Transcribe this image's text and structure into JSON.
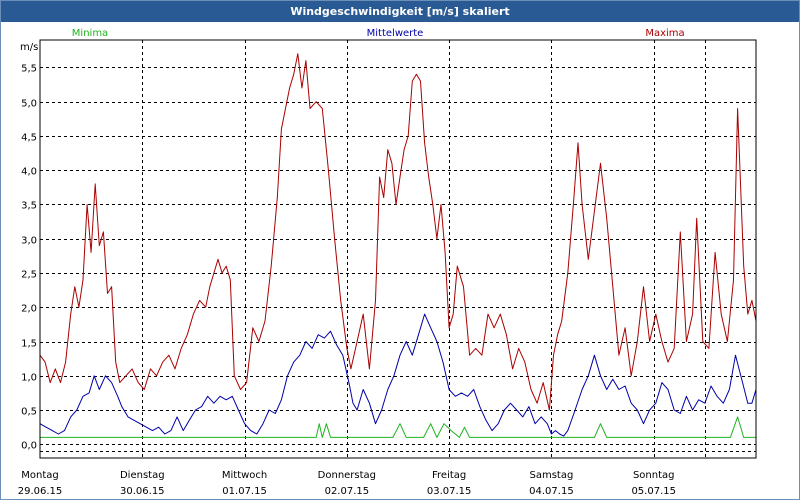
{
  "chart_data": {
    "type": "line",
    "title": "Windgeschwindigkeit [m/s] skaliert",
    "ylabel": "m/s",
    "ylim": [
      -0.2,
      5.9
    ],
    "y_ticks": [
      {
        "v": 0.0,
        "label": "0,0"
      },
      {
        "v": 0.5,
        "label": "0,5"
      },
      {
        "v": 1.0,
        "label": "1,0"
      },
      {
        "v": 1.5,
        "label": "1,5"
      },
      {
        "v": 2.0,
        "label": "2,0"
      },
      {
        "v": 2.5,
        "label": "2,5"
      },
      {
        "v": 3.0,
        "label": "3,0"
      },
      {
        "v": 3.5,
        "label": "3,5"
      },
      {
        "v": 4.0,
        "label": "4,0"
      },
      {
        "v": 4.5,
        "label": "4,5"
      },
      {
        "v": 5.0,
        "label": "5,0"
      },
      {
        "v": 5.5,
        "label": "5,5"
      }
    ],
    "xlim": [
      0,
      7
    ],
    "x_ticks": [
      {
        "day": 0,
        "weekday": "Montag",
        "date": "29.06.15"
      },
      {
        "day": 1,
        "weekday": "Dienstag",
        "date": "30.06.15"
      },
      {
        "day": 2,
        "weekday": "Mittwoch",
        "date": "01.07.15"
      },
      {
        "day": 3,
        "weekday": "Donnerstag",
        "date": "02.07.15"
      },
      {
        "day": 4,
        "weekday": "Freitag",
        "date": "03.07.15"
      },
      {
        "day": 5,
        "weekday": "Samstag",
        "date": "04.07.15"
      },
      {
        "day": 6,
        "weekday": "Sonntag",
        "date": "05.07.15"
      }
    ],
    "grid": true,
    "legend_position": "top",
    "series": [
      {
        "name": "Minima",
        "color": "#1db41d",
        "points": [
          [
            0,
            0.1
          ],
          [
            2.7,
            0.1
          ],
          [
            2.73,
            0.3
          ],
          [
            2.76,
            0.1
          ],
          [
            2.8,
            0.3
          ],
          [
            2.84,
            0.1
          ],
          [
            3.45,
            0.1
          ],
          [
            3.52,
            0.3
          ],
          [
            3.58,
            0.1
          ],
          [
            3.75,
            0.1
          ],
          [
            3.82,
            0.3
          ],
          [
            3.88,
            0.1
          ],
          [
            3.95,
            0.3
          ],
          [
            4.02,
            0.2
          ],
          [
            4.1,
            0.1
          ],
          [
            4.15,
            0.25
          ],
          [
            4.2,
            0.1
          ],
          [
            5.42,
            0.1
          ],
          [
            5.48,
            0.3
          ],
          [
            5.54,
            0.1
          ],
          [
            6.75,
            0.1
          ],
          [
            6.82,
            0.4
          ],
          [
            6.88,
            0.1
          ],
          [
            7,
            0.1
          ]
        ]
      },
      {
        "name": "Mittelwerte",
        "color": "#0000aa",
        "points": [
          [
            0,
            0.3
          ],
          [
            0.06,
            0.25
          ],
          [
            0.12,
            0.2
          ],
          [
            0.18,
            0.15
          ],
          [
            0.24,
            0.2
          ],
          [
            0.3,
            0.4
          ],
          [
            0.36,
            0.5
          ],
          [
            0.42,
            0.7
          ],
          [
            0.48,
            0.75
          ],
          [
            0.53,
            1.0
          ],
          [
            0.58,
            0.8
          ],
          [
            0.64,
            1.0
          ],
          [
            0.7,
            0.9
          ],
          [
            0.76,
            0.7
          ],
          [
            0.8,
            0.55
          ],
          [
            0.86,
            0.4
          ],
          [
            0.92,
            0.35
          ],
          [
            0.98,
            0.3
          ],
          [
            1.04,
            0.25
          ],
          [
            1.1,
            0.2
          ],
          [
            1.16,
            0.25
          ],
          [
            1.22,
            0.15
          ],
          [
            1.28,
            0.2
          ],
          [
            1.34,
            0.4
          ],
          [
            1.4,
            0.2
          ],
          [
            1.46,
            0.35
          ],
          [
            1.52,
            0.5
          ],
          [
            1.58,
            0.55
          ],
          [
            1.64,
            0.7
          ],
          [
            1.7,
            0.6
          ],
          [
            1.76,
            0.7
          ],
          [
            1.82,
            0.65
          ],
          [
            1.88,
            0.7
          ],
          [
            1.94,
            0.5
          ],
          [
            2.0,
            0.3
          ],
          [
            2.06,
            0.2
          ],
          [
            2.12,
            0.15
          ],
          [
            2.18,
            0.3
          ],
          [
            2.24,
            0.5
          ],
          [
            2.3,
            0.45
          ],
          [
            2.36,
            0.65
          ],
          [
            2.42,
            1.0
          ],
          [
            2.48,
            1.2
          ],
          [
            2.54,
            1.3
          ],
          [
            2.6,
            1.5
          ],
          [
            2.66,
            1.4
          ],
          [
            2.72,
            1.6
          ],
          [
            2.78,
            1.55
          ],
          [
            2.84,
            1.65
          ],
          [
            2.9,
            1.45
          ],
          [
            2.96,
            1.3
          ],
          [
            3.02,
            0.9
          ],
          [
            3.06,
            0.6
          ],
          [
            3.1,
            0.5
          ],
          [
            3.16,
            0.8
          ],
          [
            3.22,
            0.6
          ],
          [
            3.28,
            0.3
          ],
          [
            3.34,
            0.5
          ],
          [
            3.4,
            0.8
          ],
          [
            3.46,
            1.0
          ],
          [
            3.52,
            1.3
          ],
          [
            3.58,
            1.5
          ],
          [
            3.64,
            1.3
          ],
          [
            3.7,
            1.6
          ],
          [
            3.76,
            1.9
          ],
          [
            3.82,
            1.7
          ],
          [
            3.88,
            1.5
          ],
          [
            3.94,
            1.2
          ],
          [
            4.0,
            0.8
          ],
          [
            4.06,
            0.7
          ],
          [
            4.12,
            0.75
          ],
          [
            4.18,
            0.7
          ],
          [
            4.24,
            0.8
          ],
          [
            4.3,
            0.55
          ],
          [
            4.36,
            0.35
          ],
          [
            4.42,
            0.2
          ],
          [
            4.48,
            0.3
          ],
          [
            4.54,
            0.5
          ],
          [
            4.6,
            0.6
          ],
          [
            4.66,
            0.5
          ],
          [
            4.72,
            0.4
          ],
          [
            4.78,
            0.55
          ],
          [
            4.84,
            0.3
          ],
          [
            4.9,
            0.4
          ],
          [
            4.96,
            0.3
          ],
          [
            5.0,
            0.15
          ],
          [
            5.04,
            0.2
          ],
          [
            5.08,
            0.15
          ],
          [
            5.12,
            0.12
          ],
          [
            5.16,
            0.2
          ],
          [
            5.22,
            0.45
          ],
          [
            5.3,
            0.8
          ],
          [
            5.36,
            1.0
          ],
          [
            5.42,
            1.3
          ],
          [
            5.48,
            1.0
          ],
          [
            5.54,
            0.8
          ],
          [
            5.6,
            0.95
          ],
          [
            5.66,
            0.8
          ],
          [
            5.72,
            0.85
          ],
          [
            5.78,
            0.6
          ],
          [
            5.84,
            0.5
          ],
          [
            5.9,
            0.3
          ],
          [
            5.96,
            0.5
          ],
          [
            6.02,
            0.6
          ],
          [
            6.08,
            0.9
          ],
          [
            6.14,
            0.8
          ],
          [
            6.2,
            0.5
          ],
          [
            6.26,
            0.45
          ],
          [
            6.32,
            0.7
          ],
          [
            6.38,
            0.5
          ],
          [
            6.44,
            0.65
          ],
          [
            6.5,
            0.6
          ],
          [
            6.56,
            0.85
          ],
          [
            6.62,
            0.7
          ],
          [
            6.68,
            0.6
          ],
          [
            6.74,
            0.8
          ],
          [
            6.8,
            1.3
          ],
          [
            6.86,
            0.95
          ],
          [
            6.92,
            0.6
          ],
          [
            6.96,
            0.6
          ],
          [
            7.0,
            0.8
          ]
        ]
      },
      {
        "name": "Maxima",
        "color": "#aa0000",
        "points": [
          [
            0,
            1.3
          ],
          [
            0.05,
            1.2
          ],
          [
            0.1,
            0.9
          ],
          [
            0.15,
            1.1
          ],
          [
            0.2,
            0.9
          ],
          [
            0.25,
            1.2
          ],
          [
            0.3,
            1.9
          ],
          [
            0.34,
            2.3
          ],
          [
            0.38,
            2.0
          ],
          [
            0.42,
            2.4
          ],
          [
            0.46,
            3.5
          ],
          [
            0.5,
            2.8
          ],
          [
            0.54,
            3.8
          ],
          [
            0.58,
            2.9
          ],
          [
            0.62,
            3.1
          ],
          [
            0.66,
            2.2
          ],
          [
            0.7,
            2.3
          ],
          [
            0.74,
            1.2
          ],
          [
            0.78,
            0.9
          ],
          [
            0.84,
            1.0
          ],
          [
            0.9,
            1.1
          ],
          [
            0.96,
            0.9
          ],
          [
            1.02,
            0.8
          ],
          [
            1.08,
            1.1
          ],
          [
            1.14,
            1.0
          ],
          [
            1.2,
            1.2
          ],
          [
            1.26,
            1.3
          ],
          [
            1.32,
            1.1
          ],
          [
            1.38,
            1.4
          ],
          [
            1.44,
            1.6
          ],
          [
            1.5,
            1.9
          ],
          [
            1.56,
            2.1
          ],
          [
            1.62,
            2.0
          ],
          [
            1.66,
            2.3
          ],
          [
            1.7,
            2.5
          ],
          [
            1.74,
            2.7
          ],
          [
            1.78,
            2.5
          ],
          [
            1.82,
            2.6
          ],
          [
            1.86,
            2.4
          ],
          [
            1.9,
            1.0
          ],
          [
            1.96,
            0.8
          ],
          [
            2.02,
            0.9
          ],
          [
            2.08,
            1.7
          ],
          [
            2.14,
            1.5
          ],
          [
            2.2,
            1.8
          ],
          [
            2.26,
            2.6
          ],
          [
            2.32,
            3.6
          ],
          [
            2.36,
            4.6
          ],
          [
            2.4,
            4.9
          ],
          [
            2.44,
            5.2
          ],
          [
            2.48,
            5.4
          ],
          [
            2.52,
            5.7
          ],
          [
            2.56,
            5.2
          ],
          [
            2.6,
            5.6
          ],
          [
            2.64,
            4.9
          ],
          [
            2.7,
            5.0
          ],
          [
            2.76,
            4.9
          ],
          [
            2.82,
            4.0
          ],
          [
            2.88,
            3.0
          ],
          [
            2.94,
            2.1
          ],
          [
            3.0,
            1.4
          ],
          [
            3.04,
            1.1
          ],
          [
            3.1,
            1.5
          ],
          [
            3.16,
            1.9
          ],
          [
            3.22,
            1.1
          ],
          [
            3.28,
            2.1
          ],
          [
            3.32,
            3.9
          ],
          [
            3.36,
            3.6
          ],
          [
            3.4,
            4.3
          ],
          [
            3.44,
            4.1
          ],
          [
            3.48,
            3.5
          ],
          [
            3.52,
            3.9
          ],
          [
            3.56,
            4.3
          ],
          [
            3.6,
            4.5
          ],
          [
            3.64,
            5.3
          ],
          [
            3.68,
            5.4
          ],
          [
            3.72,
            5.3
          ],
          [
            3.76,
            4.4
          ],
          [
            3.8,
            3.9
          ],
          [
            3.84,
            3.5
          ],
          [
            3.88,
            3.0
          ],
          [
            3.92,
            3.5
          ],
          [
            3.96,
            2.8
          ],
          [
            4.0,
            1.7
          ],
          [
            4.04,
            1.9
          ],
          [
            4.08,
            2.6
          ],
          [
            4.14,
            2.3
          ],
          [
            4.2,
            1.3
          ],
          [
            4.26,
            1.4
          ],
          [
            4.32,
            1.3
          ],
          [
            4.38,
            1.9
          ],
          [
            4.44,
            1.7
          ],
          [
            4.5,
            1.9
          ],
          [
            4.56,
            1.6
          ],
          [
            4.62,
            1.1
          ],
          [
            4.68,
            1.4
          ],
          [
            4.74,
            1.2
          ],
          [
            4.8,
            0.8
          ],
          [
            4.86,
            0.6
          ],
          [
            4.92,
            0.9
          ],
          [
            4.98,
            0.5
          ],
          [
            5.02,
            1.3
          ],
          [
            5.06,
            1.6
          ],
          [
            5.1,
            1.8
          ],
          [
            5.16,
            2.5
          ],
          [
            5.22,
            3.6
          ],
          [
            5.26,
            4.4
          ],
          [
            5.3,
            3.5
          ],
          [
            5.36,
            2.7
          ],
          [
            5.42,
            3.4
          ],
          [
            5.48,
            4.1
          ],
          [
            5.54,
            3.3
          ],
          [
            5.6,
            2.3
          ],
          [
            5.66,
            1.3
          ],
          [
            5.72,
            1.7
          ],
          [
            5.78,
            1.0
          ],
          [
            5.84,
            1.5
          ],
          [
            5.9,
            2.3
          ],
          [
            5.96,
            1.5
          ],
          [
            6.02,
            1.9
          ],
          [
            6.08,
            1.5
          ],
          [
            6.14,
            1.2
          ],
          [
            6.2,
            1.4
          ],
          [
            6.26,
            3.1
          ],
          [
            6.32,
            1.5
          ],
          [
            6.38,
            1.9
          ],
          [
            6.42,
            3.3
          ],
          [
            6.48,
            1.5
          ],
          [
            6.54,
            1.4
          ],
          [
            6.6,
            2.8
          ],
          [
            6.66,
            1.9
          ],
          [
            6.72,
            1.5
          ],
          [
            6.78,
            2.4
          ],
          [
            6.82,
            4.9
          ],
          [
            6.88,
            2.6
          ],
          [
            6.92,
            1.9
          ],
          [
            6.96,
            2.1
          ],
          [
            7.0,
            1.8
          ]
        ]
      }
    ]
  }
}
